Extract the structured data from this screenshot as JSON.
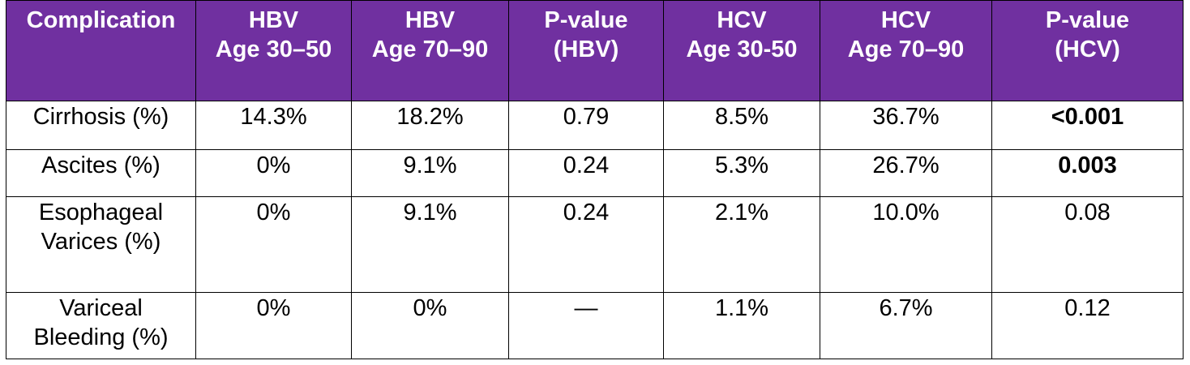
{
  "header": {
    "complication": "Complication",
    "hbv_young": [
      "HBV",
      "Age 30–50"
    ],
    "hbv_old": [
      "HBV",
      "Age 70–90"
    ],
    "p_hbv": [
      "P-value",
      "(HBV)"
    ],
    "hcv_young": [
      "HCV",
      "Age 30-50"
    ],
    "hcv_old": [
      "HCV",
      "Age 70–90"
    ],
    "p_hcv": [
      "P-value",
      "(HCV)"
    ]
  },
  "rows": [
    {
      "label": [
        "Cirrhosis (%)"
      ],
      "hbv_young": "14.3%",
      "hbv_old": "18.2%",
      "p_hbv": "0.79",
      "hcv_young": "8.5%",
      "hcv_old": "36.7%",
      "p_hcv": "<0.001",
      "p_hcv_bold": true
    },
    {
      "label": [
        "Ascites (%)"
      ],
      "hbv_young": "0%",
      "hbv_old": "9.1%",
      "p_hbv": "0.24",
      "hcv_young": "5.3%",
      "hcv_old": "26.7%",
      "p_hcv": "0.003",
      "p_hcv_bold": true
    },
    {
      "label": [
        "Esophageal",
        "Varices (%)"
      ],
      "hbv_young": "0%",
      "hbv_old": "9.1%",
      "p_hbv": "0.24",
      "hcv_young": "2.1%",
      "hcv_old": "10.0%",
      "p_hcv": "0.08",
      "p_hcv_bold": false
    },
    {
      "label": [
        "Variceal",
        "Bleeding (%)"
      ],
      "hbv_young": "0%",
      "hbv_old": "0%",
      "p_hbv": "—",
      "hcv_young": "1.1%",
      "hcv_old": "6.7%",
      "p_hcv": "0.12",
      "p_hcv_bold": false
    }
  ],
  "colors": {
    "header_bg": "#7030a0",
    "header_text": "#ffffff",
    "border": "#000000"
  }
}
